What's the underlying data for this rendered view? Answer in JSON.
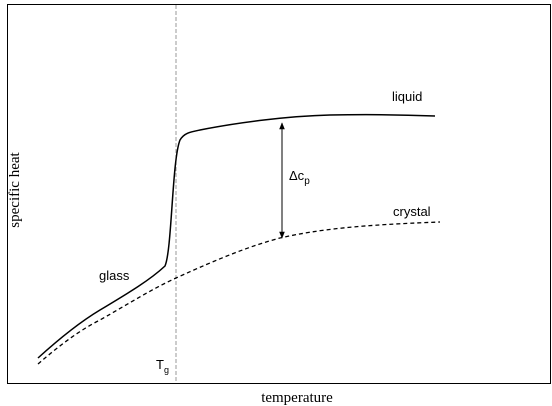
{
  "axes": {
    "x_label": "temperature",
    "y_label": "specific heat"
  },
  "curves": {
    "liquid": "liquid",
    "crystal": "crystal",
    "glass": "glass"
  },
  "annotations": {
    "delta": "Δc",
    "delta_sub": "p",
    "tg": "T",
    "tg_sub": "g"
  }
}
